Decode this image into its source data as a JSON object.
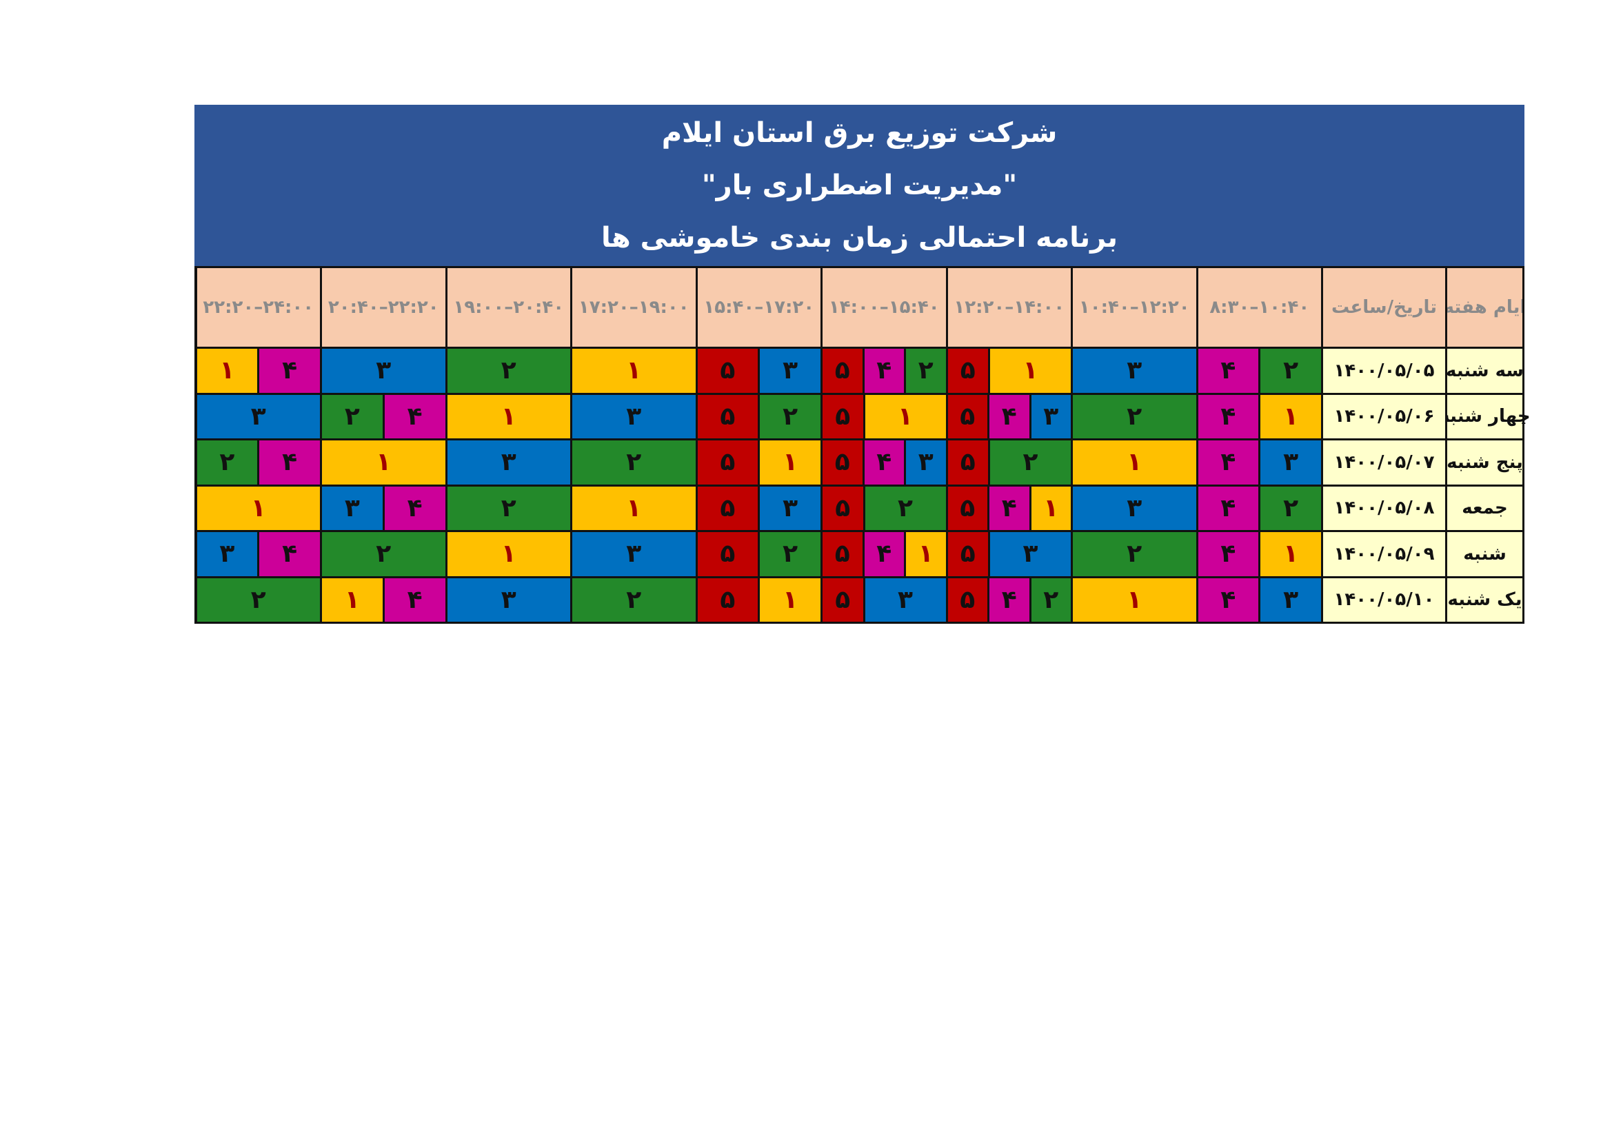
{
  "title": {
    "line1": "شرکت توزیع برق استان ایلام",
    "line2": "\"مدیریت اضطراری بار\"",
    "line3": "برنامه احتمالی زمان بندی خاموشی ها"
  },
  "headers": {
    "day": "ایام هفته",
    "date": "تاریخ/ساعت",
    "slots": [
      "۸:۳۰–۱۰:۴۰",
      "۱۰:۴۰–۱۲:۲۰",
      "۱۲:۲۰–۱۴:۰۰",
      "۱۴:۰۰–۱۵:۴۰",
      "۱۵:۴۰–۱۷:۲۰",
      "۱۷:۲۰–۱۹:۰۰",
      "۱۹:۰۰–۲۰:۴۰",
      "۲۰:۴۰–۲۲:۲۰",
      "۲۲:۲۰–۲۴:۰۰"
    ]
  },
  "group_colors": {
    "۱": {
      "bg": "#FFC000",
      "fg": "#A00000"
    },
    "۲": {
      "bg": "#23892A",
      "fg": "#111111"
    },
    "۳": {
      "bg": "#0070C0",
      "fg": "#111111"
    },
    "۴": {
      "bg": "#CC0099",
      "fg": "#111111"
    },
    "۵": {
      "bg": "#C00000",
      "fg": "#111111"
    }
  },
  "rows": [
    {
      "day": "سه شنبه",
      "date": "۱۴۰۰/۰۵/۰۵",
      "slots": [
        [
          "۲",
          "۴"
        ],
        [
          "۳"
        ],
        [
          "۱",
          "۵"
        ],
        [
          "۲",
          "۴",
          "۵"
        ],
        [
          "۳",
          "۵"
        ],
        [
          "۱"
        ],
        [
          "۲"
        ],
        [
          "۳"
        ],
        [
          "۴",
          "۱"
        ]
      ]
    },
    {
      "day": "چهار شنبه",
      "date": "۱۴۰۰/۰۵/۰۶",
      "slots": [
        [
          "۱",
          "۴"
        ],
        [
          "۲"
        ],
        [
          "۳",
          "۴",
          "۵"
        ],
        [
          "۱",
          "۵"
        ],
        [
          "۲",
          "۵"
        ],
        [
          "۳"
        ],
        [
          "۱"
        ],
        [
          "۴",
          "۲"
        ],
        [
          "۳"
        ]
      ]
    },
    {
      "day": "پنج شنبه",
      "date": "۱۴۰۰/۰۵/۰۷",
      "slots": [
        [
          "۳",
          "۴"
        ],
        [
          "۱"
        ],
        [
          "۲",
          "۵"
        ],
        [
          "۳",
          "۴",
          "۵"
        ],
        [
          "۱",
          "۵"
        ],
        [
          "۲"
        ],
        [
          "۳"
        ],
        [
          "۱"
        ],
        [
          "۴",
          "۲"
        ]
      ]
    },
    {
      "day": "جمعه",
      "date": "۱۴۰۰/۰۵/۰۸",
      "slots": [
        [
          "۲",
          "۴"
        ],
        [
          "۳"
        ],
        [
          "۱",
          "۴",
          "۵"
        ],
        [
          "۲",
          "۵"
        ],
        [
          "۳",
          "۵"
        ],
        [
          "۱"
        ],
        [
          "۲"
        ],
        [
          "۴",
          "۳"
        ],
        [
          "۱"
        ]
      ]
    },
    {
      "day": "شنبه",
      "date": "۱۴۰۰/۰۵/۰۹",
      "slots": [
        [
          "۱",
          "۴"
        ],
        [
          "۲"
        ],
        [
          "۳",
          "۵"
        ],
        [
          "۱",
          "۴",
          "۵"
        ],
        [
          "۲",
          "۵"
        ],
        [
          "۳"
        ],
        [
          "۱"
        ],
        [
          "۲"
        ],
        [
          "۴",
          "۳"
        ]
      ]
    },
    {
      "day": "یک شنبه",
      "date": "۱۴۰۰/۰۵/۱۰",
      "slots": [
        [
          "۳",
          "۴"
        ],
        [
          "۱"
        ],
        [
          "۲",
          "۴",
          "۵"
        ],
        [
          "۳",
          "۵"
        ],
        [
          "۱",
          "۵"
        ],
        [
          "۲"
        ],
        [
          "۳"
        ],
        [
          "۴",
          "۱"
        ],
        [
          "۲"
        ]
      ]
    }
  ]
}
